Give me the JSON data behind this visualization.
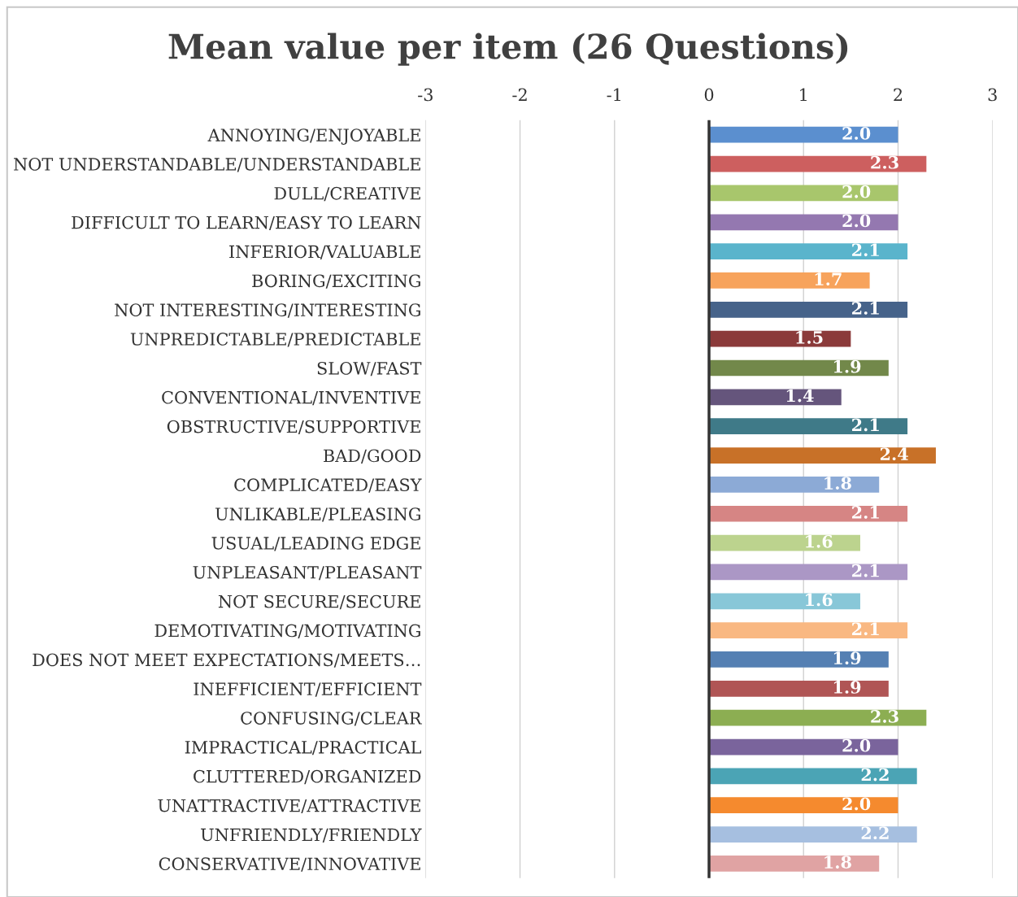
{
  "chart_data": {
    "type": "bar",
    "orientation": "horizontal",
    "title": "Mean value per item (26 Questions)",
    "categories": [
      "ANNOYING/ENJOYABLE",
      "NOT UNDERSTANDABLE/UNDERSTANDABLE",
      "DULL/CREATIVE",
      "DIFFICULT TO LEARN/EASY TO LEARN",
      "INFERIOR/VALUABLE",
      "BORING/EXCITING",
      "NOT INTERESTING/INTERESTING",
      "UNPREDICTABLE/PREDICTABLE",
      "SLOW/FAST",
      "CONVENTIONAL/INVENTIVE",
      "OBSTRUCTIVE/SUPPORTIVE",
      "BAD/GOOD",
      "COMPLICATED/EASY",
      "UNLIKABLE/PLEASING",
      "USUAL/LEADING EDGE",
      "UNPLEASANT/PLEASANT",
      "NOT SECURE/SECURE",
      "DEMOTIVATING/MOTIVATING",
      "DOES NOT MEET EXPECTATIONS/MEETS…",
      "INEFFICIENT/EFFICIENT",
      "CONFUSING/CLEAR",
      "IMPRACTICAL/PRACTICAL",
      "CLUTTERED/ORGANIZED",
      "UNATTRACTIVE/ATTRACTIVE",
      "UNFRIENDLY/FRIENDLY",
      "CONSERVATIVE/INNOVATIVE"
    ],
    "values": [
      2.0,
      2.3,
      2.0,
      2.0,
      2.1,
      1.7,
      2.1,
      1.5,
      1.9,
      1.4,
      2.1,
      2.4,
      1.8,
      2.1,
      1.6,
      2.1,
      1.6,
      2.1,
      1.9,
      1.9,
      2.3,
      2.0,
      2.2,
      2.0,
      2.2,
      1.8
    ],
    "colors": [
      "#5b8fcf",
      "#cd5f5f",
      "#a8c66c",
      "#9478b0",
      "#5ab4cc",
      "#f7a35c",
      "#46638a",
      "#8b3a3a",
      "#72884a",
      "#65557c",
      "#3f7a88",
      "#c87128",
      "#8caad6",
      "#d68584",
      "#bcd38e",
      "#ab97c5",
      "#88c7d8",
      "#f9b882",
      "#5580b3",
      "#b05555",
      "#8cae52",
      "#7a649c",
      "#4ba4b5",
      "#f58a2e",
      "#a6bfe0",
      "#e0a3a3"
    ],
    "value_labels": [
      "2.0",
      "2.3",
      "2.0",
      "2.0",
      "2.1",
      "1.7",
      "2.1",
      "1.5",
      "1.9",
      "1.4",
      "2.1",
      "2.4",
      "1.8",
      "2.1",
      "1.6",
      "2.1",
      "1.6",
      "2.1",
      "1.9",
      "1.9",
      "2.3",
      "2.0",
      "2.2",
      "2.0",
      "2.2",
      "1.8"
    ],
    "xlim": [
      -3,
      3
    ],
    "xticks": [
      -3,
      -2,
      -1,
      0,
      1,
      2,
      3
    ],
    "grid": "x"
  }
}
